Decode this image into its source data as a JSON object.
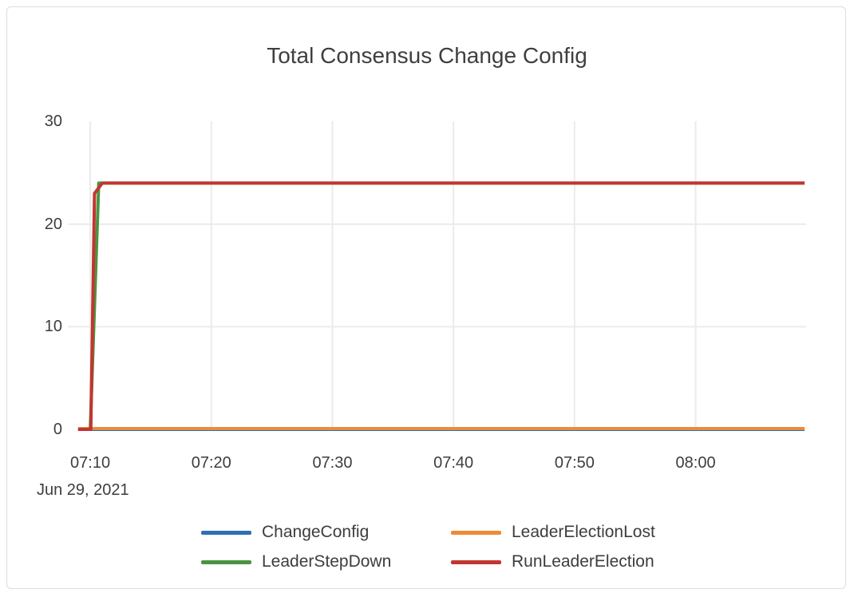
{
  "frame": {
    "background": "#ffffff",
    "border_color": "#dcdcdc"
  },
  "chart_data": {
    "type": "line",
    "title": "Total Consensus Change Config",
    "title_color": "#3f3f3f",
    "axis_label_color": "#3d3d3d",
    "x_axis": {
      "date_label": "Jun 29, 2021",
      "start_time": "07:09",
      "end_time": "08:09",
      "tick_labels": [
        "07:10",
        "07:20",
        "07:30",
        "07:40",
        "07:50",
        "08:00"
      ],
      "tick_minutes": [
        1,
        11,
        21,
        31,
        41,
        51
      ]
    },
    "y_axis": {
      "tick_labels": [
        "0",
        "10",
        "20",
        "30"
      ],
      "tick_values": [
        0,
        10,
        20,
        30
      ],
      "range": [
        0,
        30
      ],
      "grid_values": [
        10,
        20
      ]
    },
    "grid": {
      "vertical": true,
      "horizontal": true,
      "color": "#ebebeb"
    },
    "legend": {
      "position": "bottom",
      "entries": [
        "ChangeConfig",
        "LeaderElectionLost",
        "LeaderStepDown",
        "RunLeaderElection"
      ]
    },
    "series": [
      {
        "name": "ChangeConfig",
        "color": "#2E71B2",
        "points_min_val": [
          [
            0,
            0
          ],
          [
            60,
            0
          ]
        ]
      },
      {
        "name": "LeaderElectionLost",
        "color": "#EE8A38",
        "points_min_val": [
          [
            0,
            0
          ],
          [
            60,
            0
          ]
        ]
      },
      {
        "name": "LeaderStepDown",
        "color": "#4A9440",
        "points_min_val": [
          [
            0,
            0
          ],
          [
            1.0,
            0
          ],
          [
            1.7,
            24
          ],
          [
            60,
            24
          ]
        ]
      },
      {
        "name": "RunLeaderElection",
        "color": "#C23631",
        "points_min_val": [
          [
            0,
            0
          ],
          [
            1.05,
            0
          ],
          [
            1.35,
            23
          ],
          [
            2.0,
            24
          ],
          [
            60,
            24
          ]
        ]
      }
    ]
  }
}
